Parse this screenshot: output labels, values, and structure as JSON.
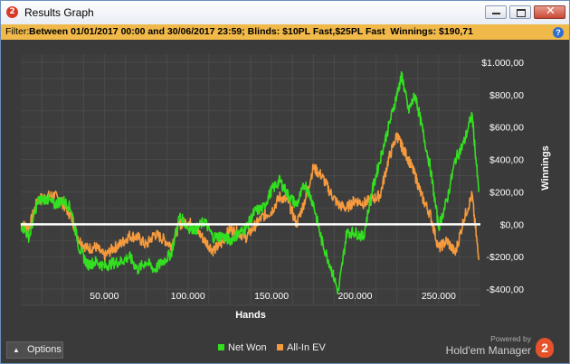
{
  "window": {
    "app_icon": "2",
    "title": "Results Graph",
    "buttons": {
      "minimize": "minimize-icon",
      "maximize": "maximize-icon",
      "close": "✕"
    }
  },
  "filter": {
    "prefix": "Filter:",
    "text": "Between 01/01/2017 00:00 and 30/06/2017 23:59; Blinds: $10PL Fast,$25PL Fast  Winnings: $190,71",
    "help": "?"
  },
  "chart_data": {
    "type": "line",
    "xlabel": "Hands",
    "ylabel": "Winnings",
    "xlim": [
      0,
      275000
    ],
    "ylim": [
      -500,
      1050
    ],
    "x_ticks": [
      50000,
      100000,
      150000,
      200000,
      250000
    ],
    "x_tick_labels": [
      "50.000",
      "100.000",
      "150.000",
      "200.000",
      "250.000"
    ],
    "y_ticks": [
      1000,
      800,
      600,
      400,
      200,
      0,
      -200,
      -400
    ],
    "y_tick_labels": [
      "$1.000,00",
      "$800,00",
      "$600,00",
      "$400,00",
      "$200,00",
      "$0,00",
      "-$200,00",
      "-$400,00"
    ],
    "grid": true,
    "legend_position": "bottom",
    "series": [
      {
        "name": "Net Won",
        "color": "#33e01f",
        "x": [
          0,
          5000,
          10000,
          15000,
          20000,
          25000,
          30000,
          35000,
          40000,
          45000,
          50000,
          55000,
          60000,
          65000,
          70000,
          75000,
          80000,
          85000,
          90000,
          95000,
          100000,
          105000,
          110000,
          115000,
          120000,
          125000,
          130000,
          135000,
          140000,
          145000,
          150000,
          155000,
          160000,
          165000,
          170000,
          175000,
          180000,
          185000,
          190000,
          195000,
          200000,
          205000,
          210000,
          215000,
          220000,
          225000,
          228000,
          232000,
          236000,
          240000,
          245000,
          250000,
          255000,
          260000,
          265000,
          270000,
          274000
        ],
        "values": [
          0,
          -80,
          140,
          160,
          120,
          150,
          100,
          -150,
          -250,
          -230,
          -260,
          -240,
          -230,
          -200,
          -280,
          -230,
          -280,
          -230,
          -180,
          50,
          -20,
          -30,
          20,
          -80,
          -70,
          -100,
          -60,
          -20,
          80,
          100,
          210,
          270,
          180,
          120,
          250,
          130,
          -100,
          -250,
          -420,
          -50,
          -50,
          -80,
          200,
          400,
          600,
          800,
          920,
          700,
          800,
          600,
          350,
          -20,
          150,
          400,
          500,
          680,
          200
        ]
      },
      {
        "name": "All-In EV",
        "color": "#f59a3d",
        "x": [
          0,
          5000,
          10000,
          15000,
          20000,
          25000,
          30000,
          35000,
          40000,
          45000,
          50000,
          55000,
          60000,
          65000,
          70000,
          75000,
          80000,
          85000,
          90000,
          95000,
          100000,
          105000,
          110000,
          115000,
          120000,
          125000,
          130000,
          135000,
          140000,
          145000,
          150000,
          155000,
          160000,
          165000,
          170000,
          175000,
          180000,
          185000,
          190000,
          195000,
          200000,
          205000,
          210000,
          215000,
          220000,
          225000,
          228000,
          232000,
          236000,
          240000,
          245000,
          250000,
          255000,
          260000,
          265000,
          270000,
          274000
        ],
        "values": [
          0,
          -20,
          150,
          170,
          180,
          130,
          50,
          -100,
          -150,
          -140,
          -200,
          -150,
          -120,
          -70,
          -80,
          -130,
          -60,
          -90,
          -130,
          0,
          20,
          -30,
          -100,
          -160,
          -120,
          -30,
          -50,
          -80,
          -10,
          50,
          80,
          170,
          140,
          0,
          150,
          350,
          300,
          200,
          120,
          100,
          150,
          130,
          150,
          180,
          400,
          550,
          480,
          400,
          300,
          170,
          60,
          -150,
          -100,
          -180,
          30,
          180,
          -220
        ]
      }
    ]
  },
  "legend": [
    {
      "label": "Net Won",
      "color": "#33e01f"
    },
    {
      "label": "All-In EV",
      "color": "#f59a3d"
    }
  ],
  "footer": {
    "options_label": "Options",
    "options_icon": "chevron-up-icon",
    "powered_by": "Powered by",
    "brand": "Hold'em Manager",
    "brand_logo": "2"
  }
}
